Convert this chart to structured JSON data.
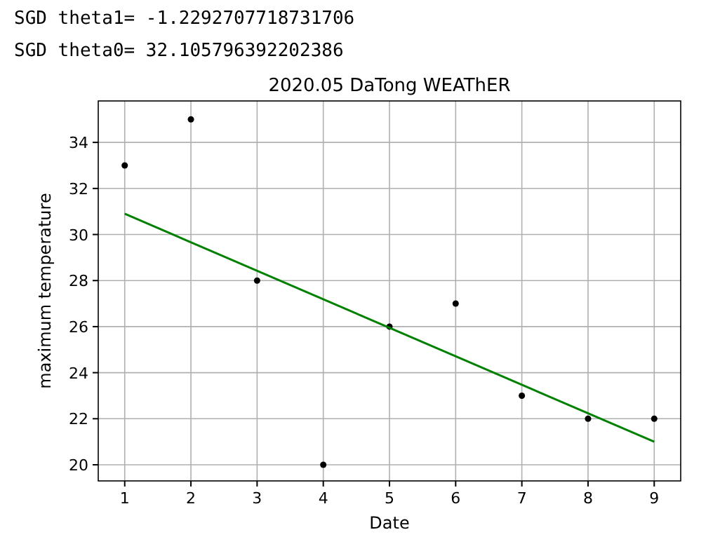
{
  "chart_data": {
    "type": "scatter",
    "title": "2020.05 DaTong WEAThER",
    "xlabel": "Date",
    "ylabel": "maximum temperature",
    "annotations": [
      "SGD theta1= -1.2292707718731706",
      "SGD theta0= 32.105796392202386"
    ],
    "series": [
      {
        "type": "scatter",
        "color": "#000000",
        "x": [
          1,
          2,
          3,
          4,
          5,
          6,
          7,
          8,
          9
        ],
        "values": [
          33,
          35,
          28,
          20,
          26,
          27,
          23,
          22,
          22
        ],
        "marker": "circle"
      },
      {
        "type": "line",
        "color": "#008000",
        "x": [
          1,
          9
        ],
        "values": [
          30.9,
          21.0
        ],
        "marker": "none",
        "line_style": "solid"
      }
    ],
    "xlim": [
      0.6,
      9.4
    ],
    "ylim": [
      19.3,
      35.8
    ],
    "xticks": [
      1,
      2,
      3,
      4,
      5,
      6,
      7,
      8,
      9
    ],
    "yticks": [
      20,
      22,
      24,
      26,
      28,
      30,
      32,
      34
    ],
    "grid": true
  }
}
